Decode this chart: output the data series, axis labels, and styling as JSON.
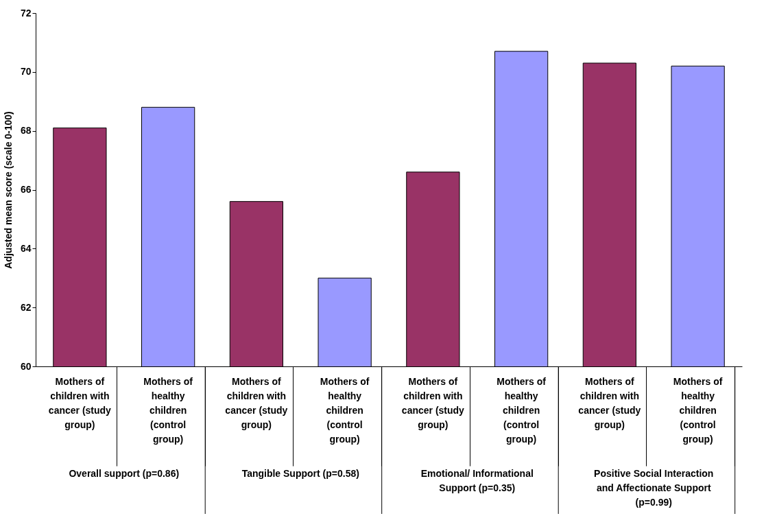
{
  "chart_data": {
    "type": "bar",
    "ylabel": "Adjusted mean score (scale 0-100)",
    "categories": [
      "Mothers of children with cancer (study group)",
      "Mothers of healthy children (control group)",
      "Mothers of children with cancer (study group)",
      "Mothers of healthy children (control group)",
      "Mothers of children with cancer (study group)",
      "Mothers of healthy children (control group)",
      "Mothers of children with cancer (study group)",
      "Mothers of healthy children (control group)"
    ],
    "values": [
      68.1,
      68.8,
      65.6,
      63.0,
      66.6,
      70.7,
      70.3,
      70.2
    ],
    "colors": [
      "#993366",
      "#9999ff",
      "#993366",
      "#9999ff",
      "#993366",
      "#9999ff",
      "#993366",
      "#9999ff"
    ],
    "annotations": [
      "Overall support (p=0.86)",
      "Tangible Support (p=0.58)",
      "Emotional/ Informational Support (p=0.35)",
      "Positive Social Interaction and Affectionate Support (p=0.99)"
    ],
    "ylim": [
      60,
      72
    ],
    "yticks": [
      60,
      62,
      64,
      66,
      68,
      70,
      72
    ],
    "grid": false,
    "legend": false
  }
}
